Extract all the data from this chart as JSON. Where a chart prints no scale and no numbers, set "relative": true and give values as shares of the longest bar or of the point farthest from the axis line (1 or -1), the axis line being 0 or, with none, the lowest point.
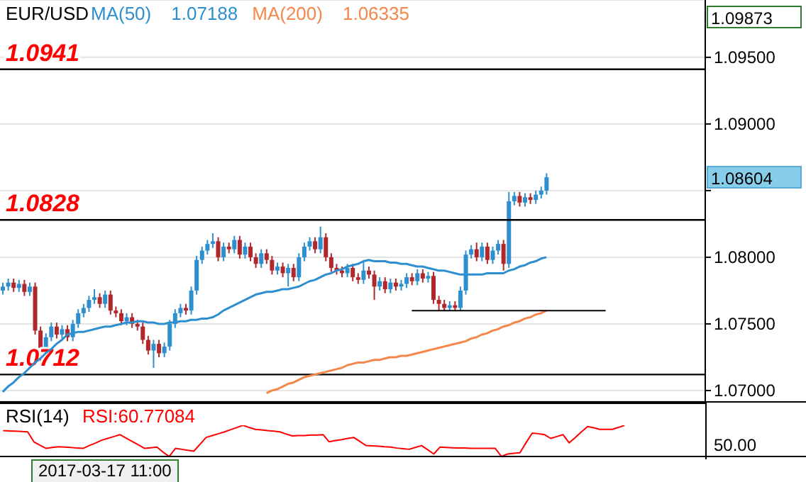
{
  "chart_data": [
    {
      "type": "candlestick",
      "title": "EUR/USD",
      "legend": "top left",
      "grid": "y",
      "categories": [
        null,
        null,
        null,
        null,
        null,
        null,
        null,
        null,
        null,
        null,
        null,
        null,
        null,
        null,
        null,
        null,
        null,
        null,
        null,
        null,
        null,
        null,
        null,
        null,
        null,
        null,
        null,
        null,
        null,
        null,
        null,
        null,
        null,
        null,
        null,
        null,
        null,
        null,
        null,
        null,
        null,
        null,
        null,
        null,
        null,
        null,
        null,
        null,
        null,
        null,
        null,
        null,
        null,
        null,
        null,
        null,
        null,
        null,
        null,
        null,
        null,
        null,
        null,
        null,
        null,
        null,
        null,
        null,
        null,
        null,
        null,
        null,
        null,
        null,
        null,
        null,
        null,
        null,
        null,
        null,
        null,
        null,
        null,
        null,
        null,
        null,
        null,
        null,
        null,
        null,
        null,
        null,
        null,
        null,
        null,
        null,
        null,
        null,
        null,
        null,
        null,
        null,
        null,
        null,
        null,
        null,
        null,
        null,
        null,
        null,
        null,
        null,
        null,
        null,
        null,
        null,
        null,
        null,
        null,
        null,
        null,
        null,
        null,
        null,
        null,
        null,
        null,
        null,
        null,
        null,
        null
      ],
      "ohlc": [
        [
          1.0775,
          1.0781,
          1.0772,
          1.0778
        ],
        [
          1.0778,
          1.0784,
          1.0775,
          1.0781
        ],
        [
          1.0781,
          1.0784,
          1.0774,
          1.0777
        ],
        [
          1.0777,
          1.0783,
          1.0774,
          1.078
        ],
        [
          1.078,
          1.0783,
          1.0771,
          1.0774
        ],
        [
          1.0774,
          1.0781,
          1.0771,
          1.0778
        ],
        [
          1.0778,
          1.0781,
          1.0742,
          1.0745
        ],
        [
          1.0745,
          1.0748,
          1.0722,
          1.0732
        ],
        [
          1.0732,
          1.0743,
          1.0729,
          1.074
        ],
        [
          1.074,
          1.0751,
          1.0737,
          1.0748
        ],
        [
          1.0748,
          1.0751,
          1.0739,
          1.0742
        ],
        [
          1.0742,
          1.0749,
          1.0739,
          1.0746
        ],
        [
          1.0746,
          1.0749,
          1.0737,
          1.074
        ],
        [
          1.074,
          1.0753,
          1.0737,
          1.075
        ],
        [
          1.075,
          1.0761,
          1.0747,
          1.0758
        ],
        [
          1.0758,
          1.0765,
          1.0755,
          1.0762
        ],
        [
          1.0762,
          1.0771,
          1.0759,
          1.0768
        ],
        [
          1.0768,
          1.0776,
          1.0765,
          1.077
        ],
        [
          1.077,
          1.0773,
          1.0762,
          1.0765
        ],
        [
          1.0765,
          1.0775,
          1.0762,
          1.0772
        ],
        [
          1.0772,
          1.0775,
          1.0757,
          1.076
        ],
        [
          1.076,
          1.0763,
          1.0755,
          1.0758
        ],
        [
          1.0758,
          1.0761,
          1.0749,
          1.0752
        ],
        [
          1.0752,
          1.0758,
          1.0749,
          1.0755
        ],
        [
          1.0755,
          1.0758,
          1.0747,
          1.075
        ],
        [
          1.075,
          1.0753,
          1.0745,
          1.0748
        ],
        [
          1.0748,
          1.0751,
          1.0735,
          1.0738
        ],
        [
          1.0738,
          1.0741,
          1.0727,
          1.073
        ],
        [
          1.073,
          1.0738,
          1.0717,
          1.0735
        ],
        [
          1.0735,
          1.0738,
          1.0725,
          1.0728
        ],
        [
          1.0728,
          1.0736,
          1.0725,
          1.0733
        ],
        [
          1.0733,
          1.0753,
          1.073,
          1.075
        ],
        [
          1.075,
          1.0761,
          1.0747,
          1.0758
        ],
        [
          1.0758,
          1.0765,
          1.0755,
          1.0762
        ],
        [
          1.0762,
          1.0765,
          1.0757,
          1.076
        ],
        [
          1.076,
          1.0778,
          1.0757,
          1.0775
        ],
        [
          1.0775,
          1.0801,
          1.0772,
          1.0798
        ],
        [
          1.0798,
          1.0808,
          1.0795,
          1.0805
        ],
        [
          1.0805,
          1.0813,
          1.0802,
          1.081
        ],
        [
          1.081,
          1.0818,
          1.0807,
          1.0812
        ],
        [
          1.0812,
          1.0815,
          1.0797,
          1.08
        ],
        [
          1.08,
          1.0811,
          1.0797,
          1.0808
        ],
        [
          1.0808,
          1.0811,
          1.0803,
          1.0806
        ],
        [
          1.0806,
          1.0816,
          1.0803,
          1.0813
        ],
        [
          1.0813,
          1.0816,
          1.0799,
          1.0802
        ],
        [
          1.0802,
          1.0811,
          1.0799,
          1.0808
        ],
        [
          1.0808,
          1.0811,
          1.0797,
          1.08
        ],
        [
          1.08,
          1.0803,
          1.0792,
          1.0795
        ],
        [
          1.0795,
          1.0806,
          1.0792,
          1.0803
        ],
        [
          1.0803,
          1.0806,
          1.0795,
          1.0798
        ],
        [
          1.0798,
          1.0801,
          1.0787,
          1.079
        ],
        [
          1.079,
          1.0796,
          1.0787,
          1.0793
        ],
        [
          1.0793,
          1.0796,
          1.0785,
          1.0788
        ],
        [
          1.0788,
          1.0795,
          1.0778,
          1.0792
        ],
        [
          1.0792,
          1.0795,
          1.0782,
          1.0785
        ],
        [
          1.0785,
          1.0803,
          1.0782,
          1.08
        ],
        [
          1.08,
          1.0811,
          1.0797,
          1.0808
        ],
        [
          1.0808,
          1.0815,
          1.0805,
          1.0812
        ],
        [
          1.0812,
          1.0815,
          1.0803,
          1.0806
        ],
        [
          1.0806,
          1.0823,
          1.0803,
          1.0815
        ],
        [
          1.0815,
          1.0818,
          1.0797,
          1.08
        ],
        [
          1.08,
          1.0803,
          1.0789,
          1.0792
        ],
        [
          1.0792,
          1.0795,
          1.0787,
          1.079
        ],
        [
          1.079,
          1.0793,
          1.0785,
          1.0788
        ],
        [
          1.0788,
          1.0795,
          1.0785,
          1.0792
        ],
        [
          1.0792,
          1.0795,
          1.0782,
          1.0785
        ],
        [
          1.0785,
          1.0788,
          1.078,
          1.0783
        ],
        [
          1.0783,
          1.0797,
          1.078,
          1.079
        ],
        [
          1.079,
          1.0793,
          1.0784,
          1.0787
        ],
        [
          1.0787,
          1.079,
          1.0768,
          1.0778
        ],
        [
          1.0778,
          1.0785,
          1.0775,
          1.0782
        ],
        [
          1.0782,
          1.0785,
          1.0773,
          1.0776
        ],
        [
          1.0776,
          1.0784,
          1.0773,
          1.0781
        ],
        [
          1.0781,
          1.0784,
          1.0775,
          1.0778
        ],
        [
          1.0778,
          1.0783,
          1.0775,
          1.078
        ],
        [
          1.078,
          1.0788,
          1.0777,
          1.0785
        ],
        [
          1.0785,
          1.0788,
          1.0779,
          1.0782
        ],
        [
          1.0782,
          1.0791,
          1.0779,
          1.0788
        ],
        [
          1.0788,
          1.0791,
          1.0781,
          1.0784
        ],
        [
          1.0784,
          1.0789,
          1.0781,
          1.0786
        ],
        [
          1.0786,
          1.0789,
          1.0765,
          1.0768
        ],
        [
          1.0768,
          1.0771,
          1.076,
          1.0765
        ],
        [
          1.0765,
          1.0768,
          1.076,
          1.0762
        ],
        [
          1.0762,
          1.0767,
          1.076,
          1.0764
        ],
        [
          1.0764,
          1.0767,
          1.076,
          1.0762
        ],
        [
          1.0762,
          1.0778,
          1.076,
          1.0775
        ],
        [
          1.0775,
          1.0805,
          1.0772,
          1.0802
        ],
        [
          1.0802,
          1.0809,
          1.0799,
          1.0806
        ],
        [
          1.0806,
          1.0811,
          1.0797,
          1.08
        ],
        [
          1.08,
          1.0811,
          1.0797,
          1.0808
        ],
        [
          1.0808,
          1.0811,
          1.0795,
          1.0798
        ],
        [
          1.0798,
          1.0808,
          1.0795,
          1.0805
        ],
        [
          1.0805,
          1.0813,
          1.0802,
          1.081
        ],
        [
          1.081,
          1.0813,
          1.079,
          1.0795
        ],
        [
          1.0795,
          1.0849,
          1.0792,
          1.0842
        ],
        [
          1.0842,
          1.0849,
          1.0839,
          1.0846
        ],
        [
          1.0846,
          1.0849,
          1.0838,
          1.0841
        ],
        [
          1.0841,
          1.0848,
          1.0838,
          1.0845
        ],
        [
          1.0845,
          1.0848,
          1.084,
          1.0843
        ],
        [
          1.0843,
          1.085,
          1.084,
          1.0847
        ],
        [
          1.0847,
          1.0853,
          1.0844,
          1.085
        ],
        [
          1.085,
          1.0863,
          1.0847,
          1.086
        ],
        null,
        null,
        null,
        null,
        null,
        null,
        null,
        null,
        null,
        null,
        null,
        null,
        null,
        null,
        null,
        null,
        null,
        null,
        null,
        null,
        null,
        null,
        null,
        null,
        null,
        null,
        null,
        null,
        null
      ],
      "series": [
        {
          "type": "line",
          "name": "MA(50)",
          "color": "#2e8fd0",
          "values": [
            1.0699,
            1.0703,
            1.0706,
            1.071,
            1.0713,
            1.0717,
            1.0721,
            1.0724,
            1.0728,
            1.0731,
            1.0735,
            1.0738,
            1.0742,
            1.0743,
            1.0744,
            1.0744,
            1.0745,
            1.0746,
            1.0747,
            1.0748,
            1.0748,
            1.0749,
            1.075,
            1.0751,
            1.0751,
            1.0752,
            1.0752,
            1.0751,
            1.0751,
            1.075,
            1.075,
            1.0751,
            1.0751,
            1.0752,
            1.0752,
            1.0753,
            1.0753,
            1.0754,
            1.0754,
            1.0755,
            1.0757,
            1.076,
            1.0762,
            1.0764,
            1.0766,
            1.0768,
            1.077,
            1.0772,
            1.0773,
            1.0774,
            1.0774,
            1.0775,
            1.0776,
            1.0776,
            1.0777,
            1.0778,
            1.078,
            1.0782,
            1.0783,
            1.0785,
            1.0787,
            1.0788,
            1.079,
            1.0791,
            1.0793,
            1.0794,
            1.0795,
            1.0797,
            1.0798,
            1.0797,
            1.0797,
            1.0797,
            1.0796,
            1.0796,
            1.0795,
            1.0795,
            1.0794,
            1.0793,
            1.0793,
            1.0792,
            1.0791,
            1.079,
            1.079,
            1.0789,
            1.0788,
            1.0787,
            1.0787,
            1.0787,
            1.0787,
            1.0787,
            1.0788,
            1.0788,
            1.0788,
            1.0788,
            1.079,
            1.0791,
            1.0793,
            1.0794,
            1.0796,
            1.0797,
            1.0799,
            1.08,
            null,
            null,
            null,
            null,
            null,
            null,
            null,
            null,
            null,
            null,
            null,
            null,
            null,
            null,
            null,
            null,
            null,
            null,
            null,
            null,
            null,
            null,
            null,
            null,
            null,
            null,
            null,
            null,
            null
          ]
        },
        {
          "type": "line",
          "name": "MA(200)",
          "color": "#f4874b",
          "values": [
            null,
            null,
            null,
            null,
            null,
            null,
            null,
            null,
            null,
            null,
            null,
            null,
            null,
            null,
            null,
            null,
            null,
            null,
            null,
            null,
            null,
            null,
            null,
            null,
            null,
            null,
            null,
            null,
            null,
            null,
            null,
            null,
            null,
            null,
            null,
            null,
            null,
            null,
            null,
            null,
            null,
            null,
            null,
            null,
            null,
            null,
            null,
            null,
            null,
            1.0698,
            1.07,
            1.0701,
            1.0703,
            1.0705,
            1.0706,
            1.0708,
            1.071,
            1.0711,
            1.0712,
            1.0713,
            1.0714,
            1.0715,
            1.0716,
            1.0717,
            1.0719,
            1.072,
            1.0721,
            1.0721,
            1.0722,
            1.0723,
            1.0723,
            1.0724,
            1.0725,
            1.0725,
            1.0726,
            1.0726,
            1.0727,
            1.0728,
            1.0729,
            1.073,
            1.0731,
            1.0732,
            1.0733,
            1.0734,
            1.0735,
            1.0736,
            1.0737,
            1.0739,
            1.074,
            1.0742,
            1.0743,
            1.0745,
            1.0746,
            1.0748,
            1.0749,
            1.0751,
            1.0752,
            1.0754,
            1.0755,
            1.0757,
            1.0758,
            1.076,
            null,
            null,
            null,
            null,
            null,
            null,
            null,
            null,
            null,
            null,
            null,
            null,
            null,
            null,
            null,
            null,
            null,
            null,
            null,
            null,
            null,
            null,
            null,
            null,
            null,
            null,
            null,
            null,
            null
          ]
        },
        {
          "type": "line",
          "color": "#000000",
          "values": [
            null,
            null,
            null,
            null,
            null,
            null,
            null,
            null,
            null,
            null,
            null,
            null,
            null,
            null,
            null,
            null,
            null,
            null,
            null,
            null,
            null,
            null,
            null,
            null,
            null,
            null,
            null,
            null,
            null,
            null,
            null,
            null,
            null,
            null,
            null,
            null,
            null,
            null,
            null,
            null,
            null,
            null,
            null,
            null,
            null,
            null,
            null,
            null,
            null,
            null,
            null,
            null,
            null,
            null,
            null,
            null,
            null,
            null,
            null,
            null,
            null,
            null,
            null,
            null,
            null,
            null,
            null,
            null,
            null,
            null,
            null,
            null,
            null,
            null,
            null,
            null,
            1.076,
            1.076,
            1.076,
            1.076,
            1.076,
            1.076,
            1.076,
            1.076,
            1.076,
            1.076,
            1.076,
            1.076,
            1.076,
            1.076,
            1.076,
            1.076,
            1.076,
            1.076,
            1.076,
            1.076,
            1.076,
            1.076,
            1.076,
            1.076,
            1.076,
            1.076,
            1.076,
            1.076,
            1.076,
            1.076,
            1.076,
            1.076,
            1.076,
            1.076,
            1.076,
            1.076,
            1.076,
            null,
            null,
            null,
            null,
            null,
            null,
            null,
            null,
            null,
            null,
            null,
            null,
            null,
            null,
            null,
            null,
            null,
            null
          ]
        }
      ],
      "ylim": [
        1.0692,
        1.0993
      ],
      "yticks": [
        {
          "value": 1.07,
          "label": "1.07000"
        },
        {
          "value": 1.075,
          "label": "1.07500"
        },
        {
          "value": 1.08,
          "label": "1.08000"
        },
        {
          "value": 1.085,
          "label": null
        },
        {
          "value": 1.09,
          "label": "1.09000"
        },
        {
          "value": 1.095,
          "label": "1.09500"
        }
      ],
      "ref_lines": [
        {
          "axis": "y",
          "value": 1.0941,
          "label": "1.0941",
          "color": "#000000"
        },
        {
          "axis": "y",
          "value": 1.0828,
          "label": "1.0828",
          "color": "#000000"
        },
        {
          "axis": "y",
          "value": 1.0712,
          "label": "1.0712",
          "color": "#000000"
        }
      ],
      "annotations": [
        "1.07188",
        "1.06335",
        "1.09873",
        "1.08604"
      ]
    },
    {
      "type": "line",
      "title": "RSI(14)",
      "legend": "top left",
      "categories": [
        null,
        null,
        null,
        null,
        null,
        null,
        null,
        null,
        null,
        null,
        null,
        null,
        null,
        null,
        null,
        null,
        null,
        null,
        null,
        null,
        null,
        null,
        null,
        null,
        null,
        null,
        null,
        null,
        null,
        null,
        null,
        null,
        null,
        null,
        null,
        null,
        null,
        null,
        null,
        null,
        null,
        null,
        null,
        null,
        null,
        null,
        null,
        null,
        null,
        null,
        null,
        null,
        null,
        null,
        null,
        null,
        null,
        null,
        null,
        null,
        null,
        null,
        null,
        null,
        null,
        null,
        null,
        null,
        null,
        null,
        null,
        null,
        null,
        null,
        null,
        null,
        null,
        null,
        null,
        null,
        null,
        null,
        null,
        null,
        null,
        null,
        null,
        null,
        null,
        null,
        null,
        null,
        null,
        null,
        null,
        null,
        null,
        null,
        null,
        null,
        null,
        null,
        null,
        null,
        null,
        null,
        null,
        null,
        null,
        null,
        null,
        null,
        null,
        null,
        null,
        null,
        null,
        null,
        null,
        null,
        null,
        null,
        null,
        null,
        null,
        null,
        null,
        null,
        null,
        null,
        null
      ],
      "relative": true,
      "series": [
        {
          "name": "RSI:60.77084",
          "color": "#ff0000",
          "values": [
            0.83,
            0.82,
            0.81,
            0.8,
            0.79,
            0.47,
            0.36,
            0.26,
            0.29,
            0.31,
            0.3,
            0.29,
            0.27,
            0.26,
            0.35,
            0.43,
            0.52,
            0.58,
            0.64,
            0.7,
            0.59,
            0.48,
            0.37,
            0.26,
            0.28,
            0.3,
            0.14,
            0,
            0.26,
            0.23,
            0.2,
            0.17,
            0.39,
            0.61,
            0.67,
            0.73,
            0.79,
            0.86,
            0.93,
            1,
            0.93,
            0.87,
            0.85,
            0.83,
            0.81,
            0.79,
            0.72,
            0.66,
            0.67,
            0.67,
            0.69,
            0.69,
            0.7,
            0.47,
            0.51,
            0.54,
            0.58,
            0.61,
            0.48,
            0.35,
            0.34,
            0.33,
            0.31,
            0.3,
            0.27,
            0.25,
            0.23,
            0.29,
            0.35,
            0.22,
            0.08,
            0.3,
            0.29,
            0.28,
            0.27,
            0.27,
            0.26,
            0.26,
            0.26,
            0.26,
            0.26,
            0,
            0.08,
            0.1,
            0.12,
            0.44,
            0.75,
            0.73,
            0.7,
            0.58,
            0.64,
            0.7,
            0.44,
            0.61,
            0.79,
            0.96,
            0.92,
            0.87,
            0.87,
            0.87,
            0.93,
            1,
            null,
            null,
            null,
            null,
            null,
            null,
            null,
            null,
            null,
            null,
            null,
            null,
            null,
            null,
            null,
            null,
            null,
            null,
            null,
            null,
            null,
            null,
            null,
            null,
            null,
            null,
            null,
            null,
            null
          ]
        }
      ],
      "annotations": [
        "50.00",
        "2017-03-17 11:00"
      ]
    }
  ]
}
